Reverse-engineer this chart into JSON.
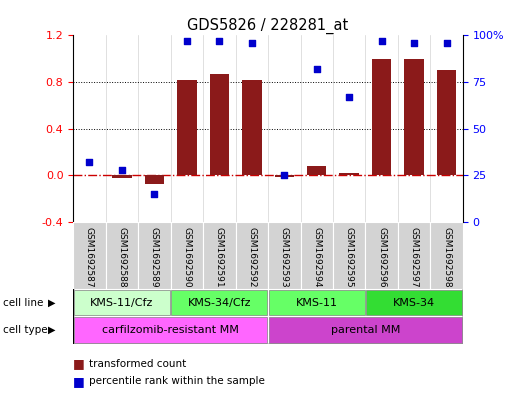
{
  "title": "GDS5826 / 228281_at",
  "samples": [
    "GSM1692587",
    "GSM1692588",
    "GSM1692589",
    "GSM1692590",
    "GSM1692591",
    "GSM1692592",
    "GSM1692593",
    "GSM1692594",
    "GSM1692595",
    "GSM1692596",
    "GSM1692597",
    "GSM1692598"
  ],
  "transformed_count": [
    0.0,
    -0.02,
    -0.07,
    0.82,
    0.87,
    0.82,
    -0.01,
    0.08,
    0.02,
    1.0,
    1.0,
    0.9
  ],
  "percentile_rank": [
    32,
    28,
    15,
    97,
    97,
    96,
    25,
    82,
    67,
    97,
    96,
    96
  ],
  "bar_color": "#8B1A1A",
  "dot_color": "#0000CC",
  "zero_line_color": "#CC0000",
  "left_ylim": [
    -0.4,
    1.2
  ],
  "right_ylim": [
    0,
    100
  ],
  "left_yticks": [
    -0.4,
    0.0,
    0.4,
    0.8,
    1.2
  ],
  "right_yticks": [
    0,
    25,
    50,
    75,
    100
  ],
  "right_yticklabels": [
    "0",
    "25",
    "50",
    "75",
    "100%"
  ],
  "cell_line_groups": [
    {
      "label": "KMS-11/Cfz",
      "start": 0,
      "end": 3,
      "color": "#CCFFCC"
    },
    {
      "label": "KMS-34/Cfz",
      "start": 3,
      "end": 6,
      "color": "#66FF66"
    },
    {
      "label": "KMS-11",
      "start": 6,
      "end": 9,
      "color": "#66FF66"
    },
    {
      "label": "KMS-34",
      "start": 9,
      "end": 12,
      "color": "#33DD33"
    }
  ],
  "cell_type_groups": [
    {
      "label": "carfilzomib-resistant MM",
      "start": 0,
      "end": 6,
      "color": "#FF66FF"
    },
    {
      "label": "parental MM",
      "start": 6,
      "end": 12,
      "color": "#CC44CC"
    }
  ],
  "sample_bg_color": "#D3D3D3",
  "legend_items": [
    {
      "label": "transformed count",
      "color": "#8B1A1A"
    },
    {
      "label": "percentile rank within the sample",
      "color": "#0000CC"
    }
  ]
}
